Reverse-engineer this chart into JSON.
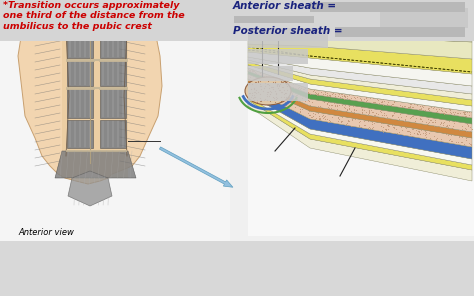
{
  "bg_color": "#d8d8d8",
  "title_text": "*Transition occurs approximately\none third of the distance from the\numbilicus to the pubic crest",
  "title_color": "#cc0000",
  "title_fontsize": 6.8,
  "anterior_label": "Anterior sheath =",
  "posterior_label": "Posterior sheath =",
  "label_color": "#1a237e",
  "label_fontsize": 7.5,
  "anterior_view_text": "Anterior view",
  "anterior_view_fontsize": 6,
  "redacted_color": "#b8b8b8",
  "arrow_color": "#88bbdd",
  "torso_skin": "#f2d5b0",
  "torso_edge": "#c8a070",
  "muscle_color": "#909090",
  "muscle_edge": "#505050"
}
